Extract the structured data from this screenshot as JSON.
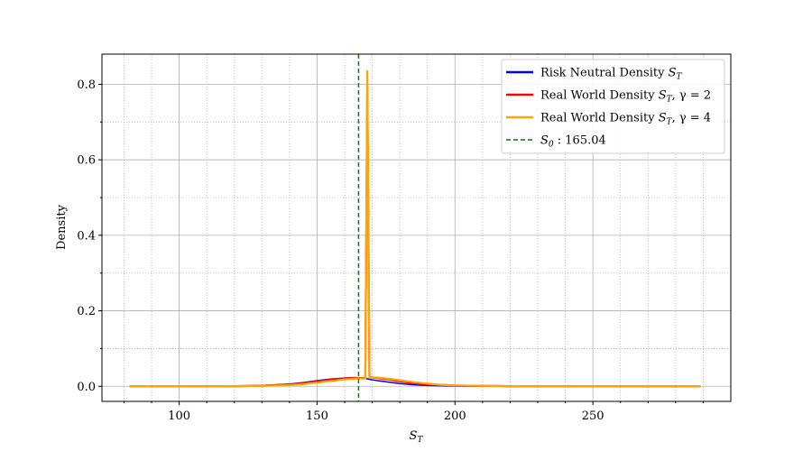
{
  "chart_data": {
    "type": "line",
    "title": "",
    "xlabel": "S",
    "xlabel_sub": "T",
    "ylabel": "Density",
    "xlim": [
      72,
      300
    ],
    "ylim": [
      -0.04,
      0.88
    ],
    "xticks_major": [
      100,
      150,
      200,
      250
    ],
    "xticks_minor": [
      80,
      90,
      110,
      120,
      130,
      140,
      160,
      170,
      180,
      190,
      210,
      220,
      230,
      240,
      260,
      270,
      280,
      290
    ],
    "yticks_major": [
      0.0,
      0.2,
      0.4,
      0.6,
      0.8
    ],
    "yticks_minor": [
      0.1,
      0.3,
      0.5,
      0.7
    ],
    "grid": true,
    "legend_placement": "top-right",
    "series": [
      {
        "name": "Risk Neutral Density S_T",
        "color": "#0000ff",
        "x": [
          82,
          100,
          120,
          130,
          140,
          145,
          150,
          155,
          160,
          163,
          165,
          168,
          170,
          175,
          180,
          185,
          190,
          200,
          220,
          250,
          289
        ],
        "y": [
          0.0,
          0.0,
          0.0005,
          0.002,
          0.006,
          0.01,
          0.015,
          0.019,
          0.022,
          0.023,
          0.023,
          0.02,
          0.017,
          0.012,
          0.007,
          0.004,
          0.002,
          0.0005,
          0.0,
          0.0,
          0.0
        ]
      },
      {
        "name": "Real World Density S_T, γ = 2",
        "color": "#ff0000",
        "x": [
          82,
          100,
          120,
          130,
          140,
          145,
          150,
          155,
          160,
          163,
          165,
          167.5,
          168.2,
          169,
          172,
          176,
          180,
          185,
          190,
          200,
          220,
          250,
          289
        ],
        "y": [
          0.0,
          0.0,
          0.0004,
          0.0015,
          0.0045,
          0.008,
          0.013,
          0.017,
          0.021,
          0.022,
          0.022,
          0.022,
          0.8,
          0.024,
          0.022,
          0.018,
          0.013,
          0.008,
          0.005,
          0.002,
          0.0005,
          0.0,
          0.0
        ]
      },
      {
        "name": "Real World Density S_T, γ = 4",
        "color": "#ffa500",
        "x": [
          82,
          100,
          120,
          130,
          140,
          145,
          150,
          155,
          160,
          163,
          165,
          167.5,
          168.2,
          169,
          172,
          176,
          180,
          185,
          190,
          195,
          200,
          220,
          250,
          289
        ],
        "y": [
          0.0,
          0.0,
          0.0003,
          0.001,
          0.003,
          0.006,
          0.01,
          0.014,
          0.018,
          0.02,
          0.021,
          0.021,
          0.835,
          0.024,
          0.023,
          0.02,
          0.016,
          0.011,
          0.007,
          0.004,
          0.002,
          0.0005,
          0.0,
          0.0
        ]
      }
    ],
    "vline": {
      "name": "S_0 : 165.04",
      "x": 165.04,
      "color": "#008000",
      "style": "dashed"
    },
    "legend": [
      {
        "main": "Risk Neutral Density ",
        "var": "S",
        "sub": "T",
        "rest": "",
        "color": "#0000ff",
        "style": "solid"
      },
      {
        "main": "Real World Density ",
        "var": "S",
        "sub": "T",
        "rest": ", γ = 2",
        "color": "#ff0000",
        "style": "solid"
      },
      {
        "main": "Real World Density ",
        "var": "S",
        "sub": "T",
        "rest": ", γ = 4",
        "color": "#ffa500",
        "style": "solid"
      },
      {
        "main": "",
        "var": "S",
        "sub": "0",
        "rest": " : 165.04",
        "color": "#008000",
        "style": "dashed"
      }
    ]
  }
}
